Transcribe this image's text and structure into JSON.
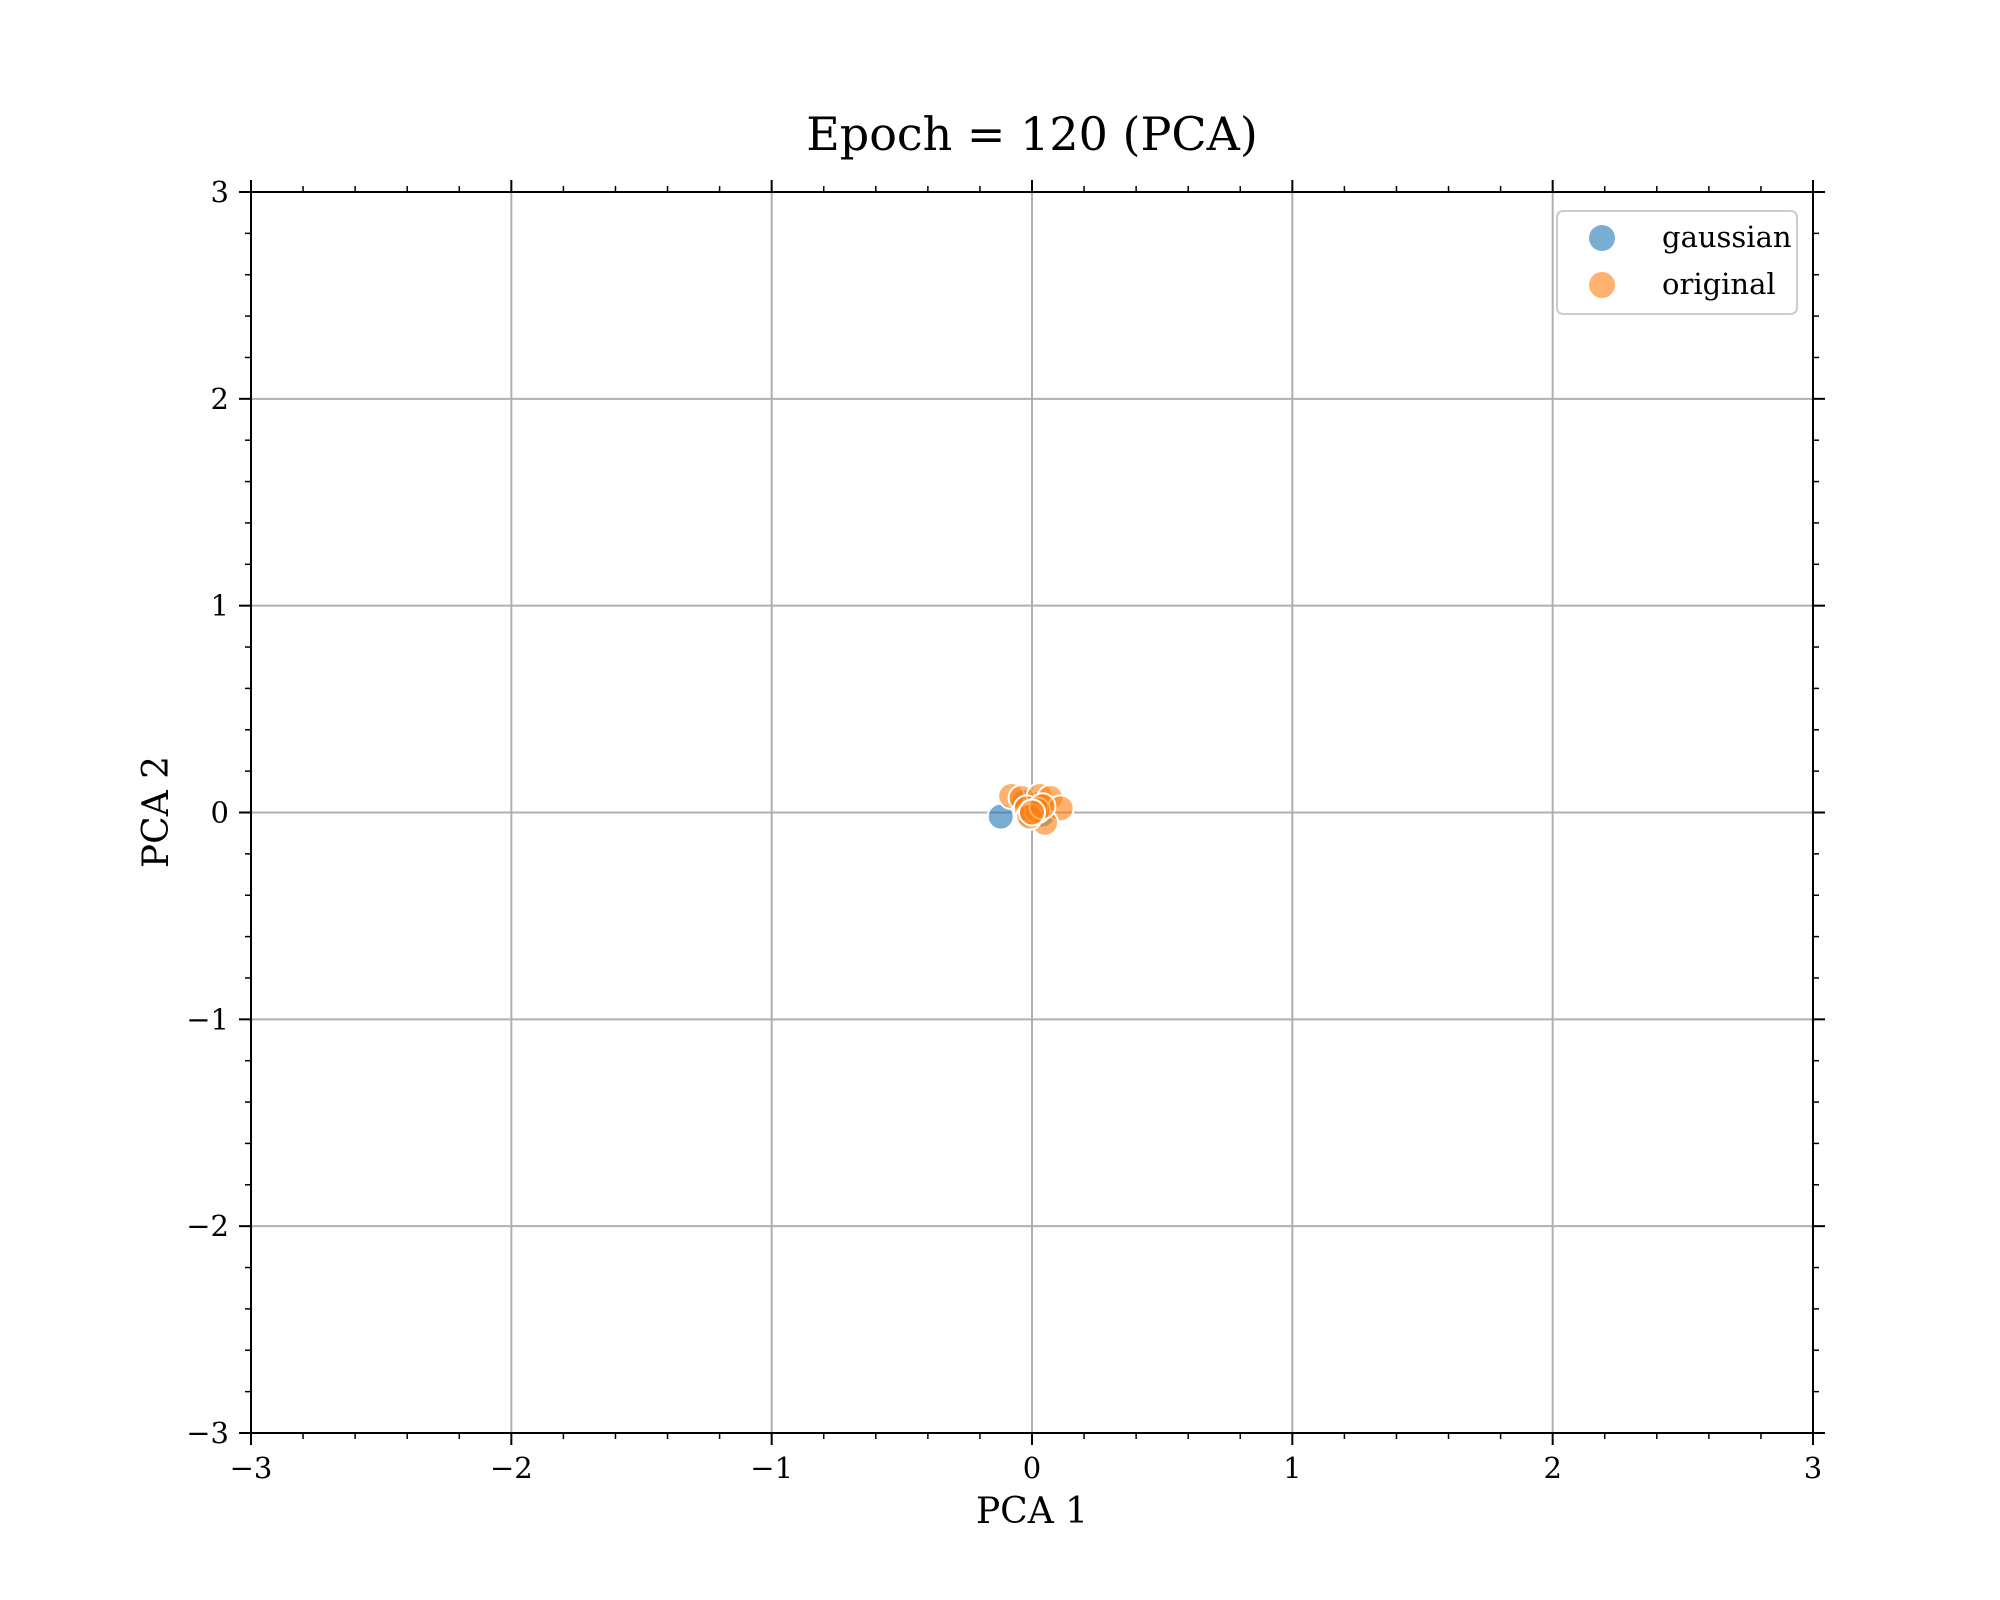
{
  "chart_data": {
    "type": "scatter",
    "title": "Epoch = 120 (PCA)",
    "xlabel": "PCA 1",
    "ylabel": "PCA 2",
    "xlim": [
      -3,
      3
    ],
    "ylim": [
      -3,
      3
    ],
    "xticks": [
      -3,
      -2,
      -1,
      0,
      1,
      2,
      3
    ],
    "yticks": [
      -3,
      -2,
      -1,
      0,
      1,
      2,
      3
    ],
    "xtick_labels": [
      "−3",
      "−2",
      "−1",
      "0",
      "1",
      "2",
      "3"
    ],
    "ytick_labels": [
      "−3",
      "−2",
      "−1",
      "0",
      "1",
      "2",
      "3"
    ],
    "grid": true,
    "legend_position": "top-right",
    "series": [
      {
        "name": "gaussian",
        "color": "#1f77b4",
        "points": [
          {
            "x": -0.12,
            "y": -0.02
          },
          {
            "x": -0.03,
            "y": 0.05
          },
          {
            "x": 0.01,
            "y": 0.02
          },
          {
            "x": 0.04,
            "y": -0.01
          },
          {
            "x": -0.01,
            "y": -0.01
          },
          {
            "x": 0.02,
            "y": 0.04
          }
        ]
      },
      {
        "name": "original",
        "color": "#ff7f0e",
        "points": [
          {
            "x": -0.08,
            "y": 0.08
          },
          {
            "x": -0.04,
            "y": 0.07
          },
          {
            "x": 0.03,
            "y": 0.08
          },
          {
            "x": 0.07,
            "y": 0.07
          },
          {
            "x": 0.11,
            "y": 0.02
          },
          {
            "x": 0.05,
            "y": -0.05
          },
          {
            "x": -0.02,
            "y": 0.02
          },
          {
            "x": 0.02,
            "y": 0.01
          },
          {
            "x": -0.01,
            "y": -0.02
          },
          {
            "x": 0.04,
            "y": 0.03
          },
          {
            "x": 0.0,
            "y": 0.0
          }
        ]
      }
    ]
  }
}
